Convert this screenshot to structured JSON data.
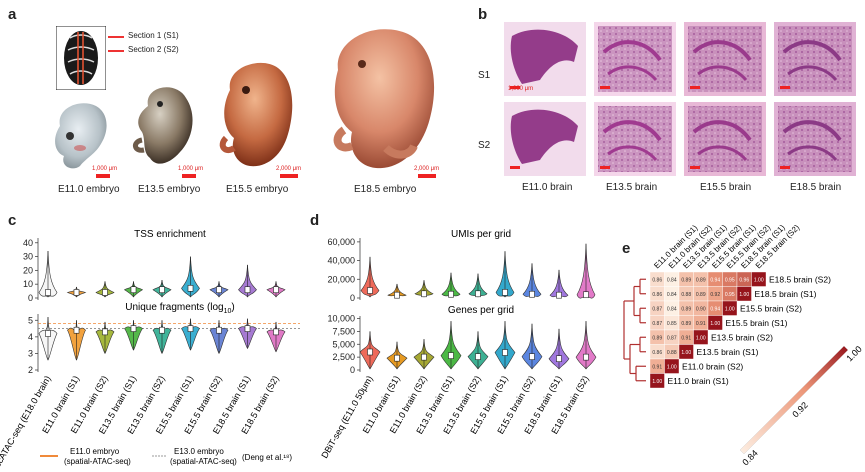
{
  "panel_a": {
    "letter": "a",
    "legend": [
      "Section 1 (S1)",
      "Section 2 (S2)"
    ],
    "embryos": [
      {
        "label": "E11.0 embryo",
        "scale": "1,000 μm"
      },
      {
        "label": "E13.5 embryo",
        "scale": "1,000 μm"
      },
      {
        "label": "E15.5 embryo",
        "scale": "2,000 μm"
      },
      {
        "label": "E18.5 embryo",
        "scale": "2,000 μm"
      }
    ]
  },
  "panel_b": {
    "letter": "b",
    "rows": [
      "S1",
      "S2"
    ],
    "cols": [
      "E11.0 brain",
      "E13.5 brain",
      "E15.5 brain",
      "E18.5 brain"
    ],
    "scale": "1,000 μm"
  },
  "panel_c": {
    "letter": "c",
    "top_title": "TSS enrichment",
    "top_ticks": [
      "40",
      "30",
      "20",
      "10",
      "0"
    ],
    "bottom_title": "Unique fragments (log",
    "bottom_title_sub": "10",
    "bottom_title_end": ")",
    "bottom_ticks": [
      "5",
      "4",
      "3",
      "2"
    ],
    "categories": [
      "10X scATAC-seq (E18.0 brain)",
      "E11.0 brain (S1)",
      "E11.0 brain (S2)",
      "E13.5 brain (S1)",
      "E13.5 brain (S2)",
      "E15.5 brain (S1)",
      "E15.5 brain (S2)",
      "E18.5 brain (S1)",
      "E18.5 brain (S2)"
    ],
    "legend": [
      {
        "label": "E11.0 embryo\n(spatial-ATAC-seq)"
      },
      {
        "label": "E13.0 embryo\n(spatial-ATAC-seq)"
      },
      {
        "label": "(Deng  et al.¹⁸)"
      }
    ]
  },
  "panel_d": {
    "letter": "d",
    "top_title": "UMIs per grid",
    "top_ticks": [
      "60,000",
      "40,000",
      "20,000",
      "0"
    ],
    "bottom_title": "Genes per grid",
    "bottom_ticks": [
      "10,000",
      "7,500",
      "5,000",
      "2,500",
      "0"
    ],
    "categories": [
      "DBiT-seq (E11.0 50μm)",
      "E11.0 brain (S1)",
      "E11.0 brain (S2)",
      "E13.5 brain (S1)",
      "E13.5 brain (S2)",
      "E15.5 brain (S1)",
      "E15.5 brain (S2)",
      "E18.5 brain (S1)",
      "E18.5 brain (S2)"
    ]
  },
  "panel_e": {
    "letter": "e",
    "labels": [
      "E11.0 brain (S1)",
      "E11.0 brain (S2)",
      "E13.5 brain (S1)",
      "E13.5 brain (S2)",
      "E15.5 brain (S1)",
      "E15.5 brain (S2)",
      "E18.5 brain (S1)",
      "E18.5 brain (S2)"
    ],
    "colorbar": [
      "1.00",
      "0.92",
      "0.84"
    ]
  },
  "chart_data": [
    {
      "type": "violin",
      "title": "TSS enrichment",
      "categories": [
        "10X scATAC-seq (E18.0 brain)",
        "E11.0 brain (S1)",
        "E11.0 brain (S2)",
        "E13.5 brain (S1)",
        "E13.5 brain (S2)",
        "E15.5 brain (S1)",
        "E15.5 brain (S2)",
        "E18.5 brain (S1)",
        "E18.5 brain (S2)"
      ],
      "medians": [
        4,
        4,
        4,
        6,
        6,
        7,
        6,
        6,
        6
      ],
      "max": [
        34,
        8,
        12,
        12,
        13,
        30,
        12,
        24,
        12
      ],
      "ylim": [
        0,
        42
      ],
      "colors": [
        "#f6f6f6",
        "#f2a23e",
        "#a6b83d",
        "#55b84a",
        "#40b49a",
        "#3aaed0",
        "#6a84d4",
        "#a67ad2",
        "#e07ac6"
      ]
    },
    {
      "type": "violin",
      "title": "Unique fragments (log10)",
      "categories": [
        "10X scATAC-seq (E18.0 brain)",
        "E11.0 brain (S1)",
        "E11.0 brain (S2)",
        "E13.5 brain (S1)",
        "E13.5 brain (S2)",
        "E15.5 brain (S1)",
        "E15.5 brain (S2)",
        "E18.5 brain (S1)",
        "E18.5 brain (S2)"
      ],
      "medians": [
        4.2,
        4.4,
        4.3,
        4.5,
        4.4,
        4.5,
        4.4,
        4.5,
        4.3
      ],
      "min": [
        2.6,
        2.6,
        3.0,
        3.2,
        3.0,
        3.2,
        3.0,
        3.3,
        3.1
      ],
      "max": [
        5.2,
        5.0,
        4.9,
        5.0,
        5.0,
        5.1,
        5.0,
        5.1,
        4.9
      ],
      "ylim": [
        2,
        5.5
      ],
      "hlines": [
        4.8,
        4.5
      ]
    },
    {
      "type": "violin",
      "title": "UMIs per grid",
      "categories": [
        "DBiT-seq (E11.0 50μm)",
        "E11.0 brain (S1)",
        "E11.0 brain (S2)",
        "E13.5 brain (S1)",
        "E13.5 brain (S2)",
        "E15.5 brain (S1)",
        "E15.5 brain (S2)",
        "E18.5 brain (S1)",
        "E18.5 brain (S2)"
      ],
      "medians": [
        8000,
        3000,
        4500,
        4000,
        4500,
        6000,
        4000,
        3000,
        3500
      ],
      "max": [
        44000,
        15000,
        19000,
        27000,
        26000,
        50000,
        37000,
        30000,
        58000
      ],
      "ylim": [
        0,
        62000
      ],
      "colors": [
        "#ee6a5a",
        "#e69a22",
        "#a6a833",
        "#4bb845",
        "#3db093",
        "#33a8cc",
        "#5b86e0",
        "#a077de",
        "#e27ac8"
      ]
    },
    {
      "type": "violin",
      "title": "Genes per grid",
      "categories": [
        "DBiT-seq (E11.0 50μm)",
        "E11.0 brain (S1)",
        "E11.0 brain (S2)",
        "E13.5 brain (S1)",
        "E13.5 brain (S2)",
        "E15.5 brain (S1)",
        "E15.5 brain (S2)",
        "E18.5 brain (S1)",
        "E18.5 brain (S2)"
      ],
      "medians": [
        3500,
        2300,
        2500,
        2800,
        2600,
        3400,
        2600,
        2200,
        2500
      ],
      "max": [
        7500,
        5500,
        6000,
        9500,
        7500,
        9500,
        9000,
        8000,
        9500
      ],
      "ylim": [
        0,
        10500
      ]
    },
    {
      "type": "heatmap",
      "labels": [
        "E11.0 brain (S1)",
        "E11.0 brain (S2)",
        "E13.5 brain (S1)",
        "E13.5 brain (S2)",
        "E15.5 brain (S1)",
        "E15.5 brain (S2)",
        "E18.5 brain (S1)",
        "E18.5 brain (S2)"
      ],
      "values": [
        [
          1.0,
          0.91,
          0.86,
          0.89,
          0.87,
          0.87,
          0.86,
          0.86
        ],
        [
          0.91,
          1.0,
          0.88,
          0.87,
          0.85,
          0.84,
          0.84,
          0.84
        ],
        [
          0.86,
          0.88,
          1.0,
          0.91,
          0.89,
          0.89,
          0.88,
          0.89
        ],
        [
          0.89,
          0.87,
          0.91,
          1.0,
          0.91,
          0.9,
          0.89,
          0.89
        ],
        [
          0.87,
          0.85,
          0.89,
          0.91,
          1.0,
          0.94,
          0.92,
          0.94
        ],
        [
          0.87,
          0.84,
          0.89,
          0.9,
          0.94,
          1.0,
          0.95,
          0.95
        ],
        [
          0.86,
          0.84,
          0.88,
          0.89,
          0.92,
          0.95,
          1.0,
          0.96
        ],
        [
          0.86,
          0.84,
          0.89,
          0.89,
          0.94,
          0.95,
          0.96,
          1.0
        ]
      ],
      "colorbar_range": [
        0.84,
        1.0
      ]
    }
  ]
}
